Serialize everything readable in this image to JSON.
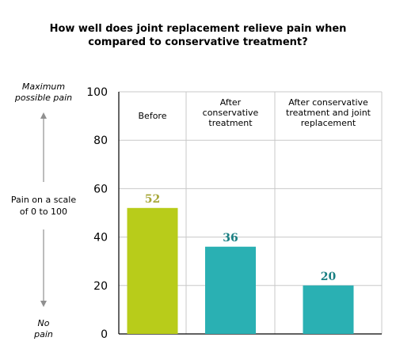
{
  "chart_data": {
    "type": "bar",
    "title": [
      "How well does joint replacement relieve pain when",
      "compared to conservative treatment?"
    ],
    "categories": [
      [
        "Before"
      ],
      [
        "After",
        "conservative",
        "treatment"
      ],
      [
        "After conservative",
        "treatment and joint",
        "replacement"
      ]
    ],
    "values": [
      52,
      36,
      20
    ],
    "data_labels": [
      "52",
      "36",
      "20"
    ],
    "ylim": [
      0,
      100
    ],
    "yticks": [
      "0",
      "20",
      "40",
      "60",
      "80",
      "100"
    ],
    "ylabel": [
      "Pain on a scale",
      "of 0 to 100"
    ],
    "y_top_note": [
      "Maximum",
      "possible pain"
    ],
    "y_bottom_note": [
      "No",
      "pain"
    ],
    "grid": true,
    "colors": {
      "bars": [
        "#b8cc1a",
        "#2ab0b3",
        "#2ab0b3"
      ],
      "value_labels": [
        "#a8a83a",
        "#187f82",
        "#187f82"
      ],
      "grid": "#c8c8c8",
      "axis": "#000000",
      "arrow": "#909090"
    }
  }
}
